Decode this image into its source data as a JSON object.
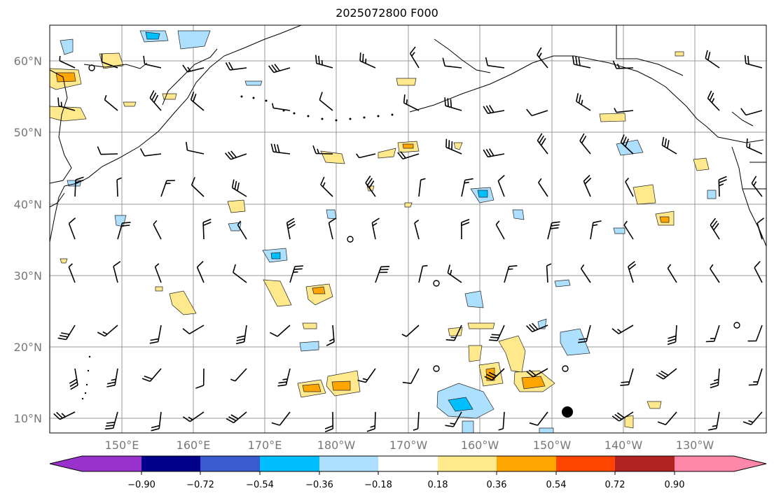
{
  "title": "2025072800 F000",
  "lat_labels": [
    "60°N",
    "50°N",
    "40°N",
    "30°N",
    "20°N",
    "10°N"
  ],
  "lon_labels": [
    "150°E",
    "160°E",
    "170°E",
    "180°W",
    "170°W",
    "160°W",
    "150°W",
    "140°W",
    "130°W"
  ],
  "colorbar": {
    "tick_labels": [
      "−0.90",
      "−0.72",
      "−0.54",
      "−0.36",
      "−0.18",
      "0.18",
      "0.36",
      "0.54",
      "0.72",
      "0.90"
    ],
    "colors": [
      "#9932CC",
      "#00008B",
      "#3A5BCF",
      "#00BFFF",
      "#ADDFFF",
      "#FFFFFF",
      "#FFE98C",
      "#FFA500",
      "#FF4500",
      "#B22222",
      "#FF88AA"
    ]
  },
  "legend_colors": {
    "neg_light": "#ADDFFF",
    "neg_mid": "#00BFFF",
    "pos_light": "#FFE98C",
    "pos_mid": "#FFA500",
    "grid": "#999999",
    "land_line": "#000000"
  },
  "map_extent": {
    "lon_west": 140,
    "lon_east": 240,
    "lat_south": 8,
    "lat_north": 65
  }
}
